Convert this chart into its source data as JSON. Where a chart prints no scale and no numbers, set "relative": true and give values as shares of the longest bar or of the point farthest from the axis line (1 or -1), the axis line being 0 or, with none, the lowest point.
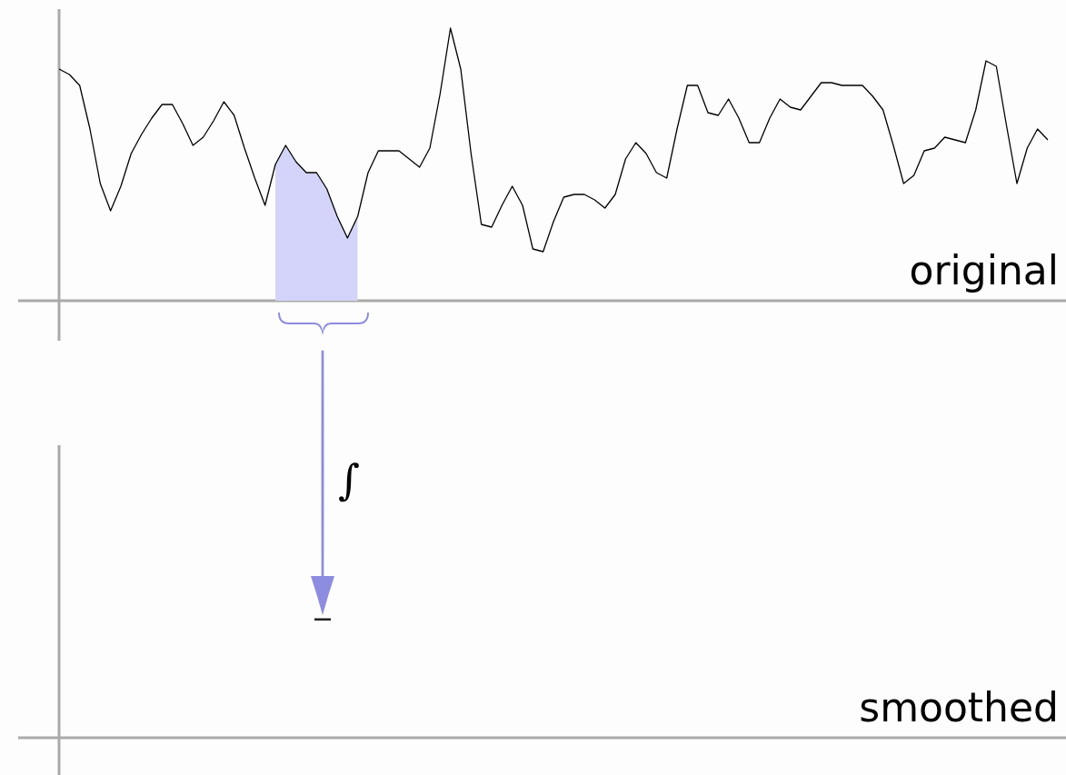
{
  "chart_data": [
    {
      "type": "line",
      "relative": true,
      "categories": [
        null,
        null,
        null,
        null,
        null,
        null,
        null,
        null,
        null,
        null,
        null,
        null,
        null,
        null,
        null,
        null,
        null,
        null,
        null,
        null,
        null,
        null,
        null,
        null,
        null,
        null,
        null,
        null,
        null,
        null,
        null,
        null,
        null,
        null,
        null,
        null,
        null,
        null,
        null,
        null,
        null,
        null,
        null,
        null,
        null,
        null,
        null,
        null,
        null,
        null,
        null,
        null,
        null,
        null,
        null,
        null,
        null,
        null,
        null,
        null,
        null,
        null,
        null,
        null,
        null,
        null,
        null,
        null,
        null,
        null,
        null,
        null,
        null,
        null,
        null,
        null,
        null,
        null,
        null,
        null,
        null,
        null,
        null,
        null,
        null,
        null,
        null,
        null,
        null,
        null,
        null,
        null,
        null,
        null,
        null,
        null,
        null
      ],
      "series": [
        {
          "type": "area",
          "color": "#d4d4fa",
          "values": [
            null,
            null,
            null,
            null,
            null,
            null,
            null,
            null,
            null,
            null,
            null,
            null,
            null,
            null,
            null,
            null,
            null,
            null,
            null,
            null,
            null,
            0.5,
            0.57,
            0.51,
            0.47,
            0.47,
            0.41,
            0.31,
            0.23,
            0.31,
            null,
            null,
            null,
            null,
            null,
            null,
            null,
            null,
            null,
            null,
            null,
            null,
            null,
            null,
            null,
            null,
            null,
            null,
            null,
            null,
            null,
            null,
            null,
            null,
            null,
            null,
            null,
            null,
            null,
            null,
            null,
            null,
            null,
            null,
            null,
            null,
            null,
            null,
            null,
            null,
            null,
            null,
            null,
            null,
            null,
            null,
            null,
            null,
            null,
            null,
            null,
            null,
            null,
            null,
            null,
            null,
            null,
            null,
            null,
            null,
            null,
            null,
            null,
            null,
            null,
            null,
            null
          ]
        },
        {
          "type": "line",
          "color": "#000000",
          "values": [
            0.85,
            0.83,
            0.79,
            0.63,
            0.43,
            0.33,
            0.42,
            0.54,
            0.61,
            0.67,
            0.72,
            0.72,
            0.65,
            0.57,
            0.6,
            0.66,
            0.73,
            0.68,
            0.56,
            0.45,
            0.35,
            0.5,
            0.57,
            0.51,
            0.47,
            0.47,
            0.41,
            0.31,
            0.23,
            0.31,
            0.47,
            0.55,
            0.55,
            0.55,
            0.52,
            0.49,
            0.56,
            0.76,
            1,
            0.85,
            0.54,
            0.28,
            0.27,
            0.35,
            0.42,
            0.35,
            0.19,
            0.18,
            0.29,
            0.38,
            0.39,
            0.39,
            0.37,
            0.34,
            0.39,
            0.52,
            0.58,
            0.54,
            0.47,
            0.45,
            0.63,
            0.79,
            0.79,
            0.69,
            0.68,
            0.74,
            0.67,
            0.58,
            0.58,
            0.67,
            0.74,
            0.71,
            0.7,
            0.75,
            0.8,
            0.8,
            0.79,
            0.79,
            0.79,
            0.75,
            0.7,
            0.57,
            0.43,
            0.46,
            0.55,
            0.56,
            0.6,
            0.59,
            0.58,
            0.7,
            0.88,
            0.86,
            0.64,
            0.43,
            0.56,
            0.63,
            0.59
          ]
        }
      ],
      "annotations": [
        "original",
        "∫"
      ]
    },
    {
      "type": "other",
      "annotations": [
        "smoothed"
      ]
    }
  ]
}
